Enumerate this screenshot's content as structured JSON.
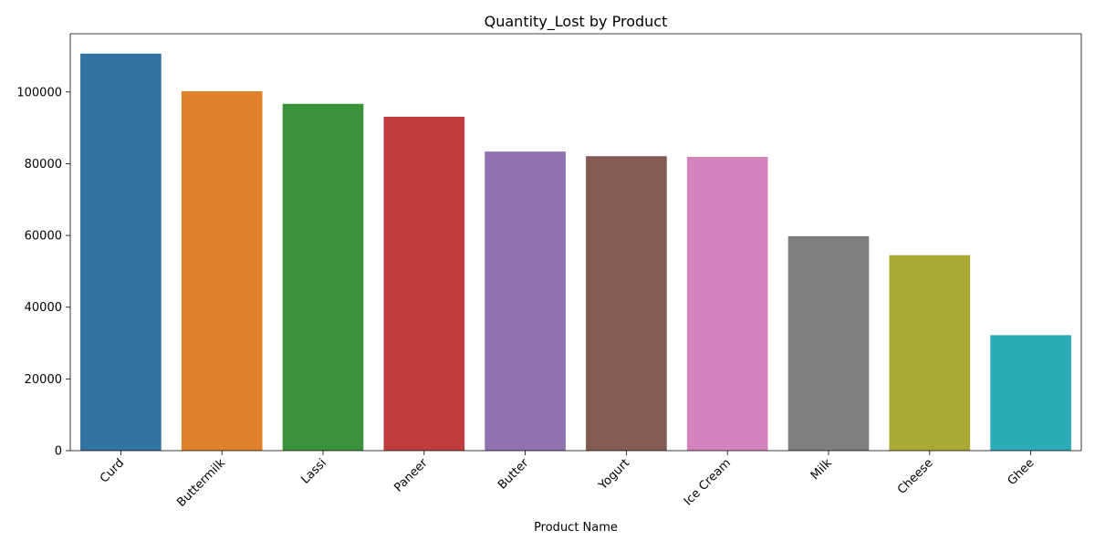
{
  "chart_data": {
    "type": "bar",
    "title": "Quantity_Lost by Product",
    "xlabel": "Product Name",
    "ylabel": "",
    "categories": [
      "Curd",
      "Buttermilk",
      "Lassi",
      "Paneer",
      "Butter",
      "Yogurt",
      "Ice Cream",
      "Milk",
      "Cheese",
      "Ghee"
    ],
    "values": [
      110700,
      100200,
      96700,
      93100,
      83400,
      82100,
      81900,
      59800,
      54500,
      32200
    ],
    "colors": [
      "#3274a1",
      "#e1812c",
      "#3a923a",
      "#c03d3e",
      "#9372b2",
      "#845b53",
      "#d684bd",
      "#7f7f7f",
      "#a9aa35",
      "#2eabb8"
    ],
    "ylim": [
      0,
      116235
    ],
    "yticks": [
      0,
      20000,
      40000,
      60000,
      80000,
      100000
    ],
    "ytick_labels": [
      "0",
      "20000",
      "40000",
      "60000",
      "80000",
      "100000"
    ],
    "grid": false,
    "legend": "none",
    "xtick_rotation_deg": 45
  }
}
